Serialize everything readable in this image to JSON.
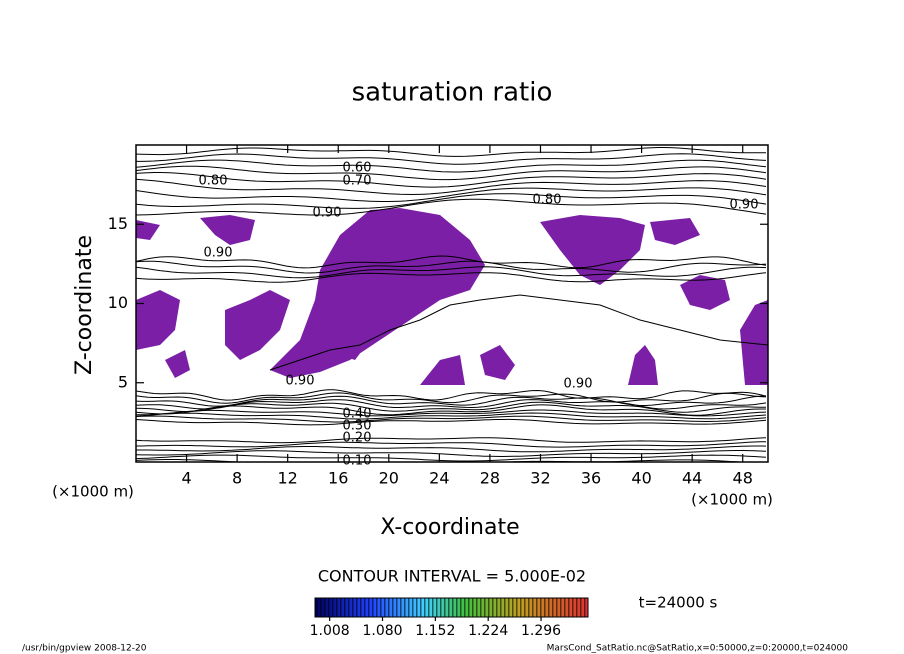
{
  "chart_data": {
    "type": "contour",
    "title": "saturation ratio",
    "x_label": "X-coordinate",
    "y_label": "Z-coordinate",
    "x_unit": "(×1000 m)",
    "y_unit": "(×1000 m)",
    "xlim": [
      0,
      50
    ],
    "xticks": [
      4,
      8,
      12,
      16,
      20,
      24,
      28,
      32,
      36,
      40,
      44,
      48
    ],
    "ylim": [
      0,
      20
    ],
    "yticks": [
      5,
      10,
      15
    ],
    "fill_color": "#7b1fa6",
    "annotations": [
      "0.60",
      "0.70",
      "0.80",
      "0.90",
      "0.80",
      "0.90",
      "0.90",
      "0.90",
      "0.90",
      "0.40",
      "0.30",
      "0.20",
      "0.10"
    ],
    "contour_interval": "CONTOUR INTERVAL = 5.000E-02",
    "time_label": "t=24000 s",
    "clim": [
      0.988,
      1.36
    ],
    "cticks": [
      1.008,
      {
        "value": 1.08,
        "label": "1.080"
      },
      1.152,
      1.224,
      1.296
    ],
    "footer_left": "/usr/bin/gpview   2008-12-20",
    "footer_right": "MarsCond_SatRatio.nc@SatRatio,x=0:50000,z=0:20000,t=024000"
  }
}
